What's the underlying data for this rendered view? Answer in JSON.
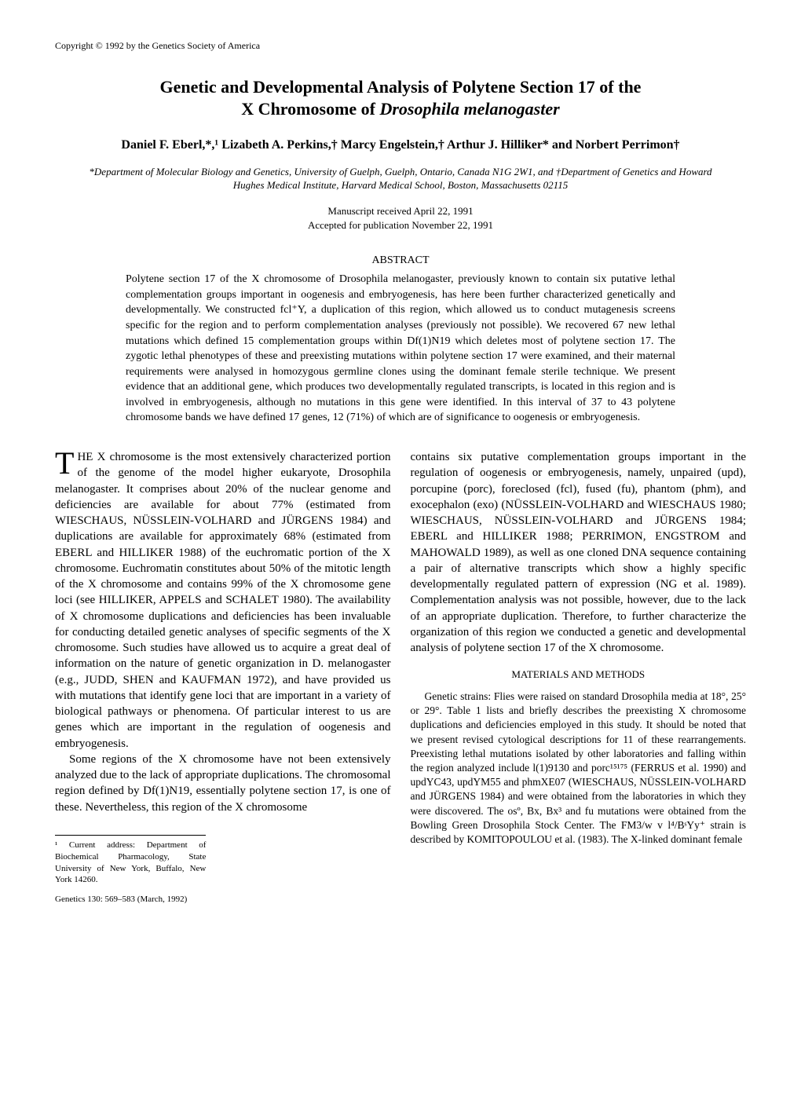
{
  "copyright": "Copyright © 1992 by the Genetics Society of America",
  "title_line1": "Genetic and Developmental Analysis of Polytene Section 17 of the",
  "title_line2": "X Chromosome of ",
  "title_italic": "Drosophila melanogaster",
  "authors": "Daniel F. Eberl,*,¹ Lizabeth A. Perkins,† Marcy Engelstein,† Arthur J. Hilliker* and Norbert Perrimon†",
  "affiliations": "*Department of Molecular Biology and Genetics, University of Guelph, Guelph, Ontario, Canada N1G 2W1, and †Department of Genetics and Howard Hughes Medical Institute, Harvard Medical School, Boston, Massachusetts 02115",
  "manuscript_received": "Manuscript received April 22, 1991",
  "accepted": "Accepted for publication November 22, 1991",
  "abstract_heading": "ABSTRACT",
  "abstract": "Polytene section 17 of the X chromosome of Drosophila melanogaster, previously known to contain six putative lethal complementation groups important in oogenesis and embryogenesis, has here been further characterized genetically and developmentally. We constructed fcl⁺Y, a duplication of this region, which allowed us to conduct mutagenesis screens specific for the region and to perform complementation analyses (previously not possible). We recovered 67 new lethal mutations which defined 15 complementation groups within Df(1)N19 which deletes most of polytene section 17. The zygotic lethal phenotypes of these and preexisting mutations within polytene section 17 were examined, and their maternal requirements were analysed in homozygous germline clones using the dominant female sterile technique. We present evidence that an additional gene, which produces two developmentally regulated transcripts, is located in this region and is involved in embryogenesis, although no mutations in this gene were identified. In this interval of 37 to 43 polytene chromosome bands we have defined 17 genes, 12 (71%) of which are of significance to oogenesis or embryogenesis.",
  "col1_para1": "HE X chromosome is the most extensively characterized portion of the genome of the model higher eukaryote, Drosophila melanogaster. It comprises about 20% of the nuclear genome and deficiencies are available for about 77% (estimated from WIESCHAUS, NÜSSLEIN-VOLHARD and JÜRGENS 1984) and duplications are available for approximately 68% (estimated from EBERL and HILLIKER 1988) of the euchromatic portion of the X chromosome. Euchromatin constitutes about 50% of the mitotic length of the X chromosome and contains 99% of the X chromosome gene loci (see HILLIKER, APPELS and SCHALET 1980). The availability of X chromosome duplications and deficiencies has been invaluable for conducting detailed genetic analyses of specific segments of the X chromosome. Such studies have allowed us to acquire a great deal of information on the nature of genetic organization in D. melanogaster (e.g., JUDD, SHEN and KAUFMAN 1972), and have provided us with mutations that identify gene loci that are important in a variety of biological pathways or phenomena. Of particular interest to us are genes which are important in the regulation of oogenesis and embryogenesis.",
  "col1_para2": "Some regions of the X chromosome have not been extensively analyzed due to the lack of appropriate duplications. The chromosomal region defined by Df(1)N19, essentially polytene section 17, is one of these. Nevertheless, this region of the X chromosome",
  "col2_para1": "contains six putative complementation groups important in the regulation of oogenesis or embryogenesis, namely, unpaired (upd), porcupine (porc), foreclosed (fcl), fused (fu), phantom (phm), and exocephalon (exo) (NÜSSLEIN-VOLHARD and WIESCHAUS 1980; WIESCHAUS, NÜSSLEIN-VOLHARD and JÜRGENS 1984; EBERL and HILLIKER 1988; PERRIMON, ENGSTROM and MAHOWALD 1989), as well as one cloned DNA sequence containing a pair of alternative transcripts which show a highly specific developmentally regulated pattern of expression (NG et al. 1989). Complementation analysis was not possible, however, due to the lack of an appropriate duplication. Therefore, to further characterize the organization of this region we conducted a genetic and developmental analysis of polytene section 17 of the X chromosome.",
  "methods_heading": "MATERIALS AND METHODS",
  "col2_para2": "Genetic strains: Flies were raised on standard Drosophila media at 18°, 25° or 29°. Table 1 lists and briefly describes the preexisting X chromosome duplications and deficiencies employed in this study. It should be noted that we present revised cytological descriptions for 11 of these rearrangements. Preexisting lethal mutations isolated by other laboratories and falling within the region analyzed include l(1)9130 and porc¹⁵¹⁷⁵ (FERRUS et al. 1990) and updYC43, updYM55 and phmXE07 (WIESCHAUS, NÜSSLEIN-VOLHARD and JÜRGENS 1984) and were obtained from the laboratories in which they were discovered. The osº, Bx, Bx³ and fu mutations were obtained from the Bowling Green Drosophila Stock Center. The FM3/w v l⁴/BˢYy⁺ strain is described by KOMITOPOULOU et al. (1983). The X-linked dominant female",
  "footnote": "¹ Current address: Department of Biochemical Pharmacology, State University of New York, Buffalo, New York 14260.",
  "page_footer": "Genetics 130: 569–583 (March, 1992)"
}
